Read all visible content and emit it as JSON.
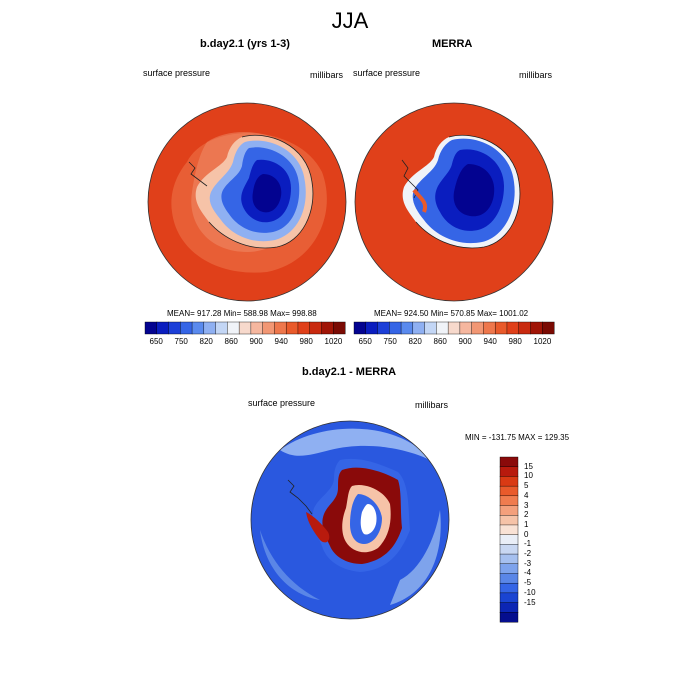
{
  "title": "JJA",
  "panels": [
    {
      "title": "b.day2.1 (yrs 1-3)",
      "left_label": "surface pressure",
      "right_label": "millibars",
      "stats": "MEAN= 917.28  Min= 588.98  Max= 998.88"
    },
    {
      "title": "MERRA",
      "left_label": "surface pressure",
      "right_label": "millibars",
      "stats": "MEAN= 924.50  Min= 570.85  Max= 1001.02"
    }
  ],
  "colorbar_pressure": {
    "tick_labels": [
      "650",
      "750",
      "820",
      "860",
      "900",
      "940",
      "980",
      "1020"
    ],
    "colors": [
      "#030390",
      "#0a1dbf",
      "#1c3fd8",
      "#3565e6",
      "#5a8aee",
      "#8fb0f2",
      "#c3d6f5",
      "#f0f3f8",
      "#f7d9cc",
      "#f6b79f",
      "#f29774",
      "#ee774c",
      "#e95a2b",
      "#e0401a",
      "#c92a0f",
      "#a01406",
      "#7a0a03"
    ]
  },
  "difference": {
    "title": "b.day2.1 - MERRA",
    "left_label": "surface pressure",
    "right_label": "millibars",
    "stats": "MIN = -131.75 MAX = 129.35",
    "tick_labels": [
      "15",
      "10",
      "5",
      "4",
      "3",
      "2",
      "1",
      "0",
      "-1",
      "-2",
      "-3",
      "-4",
      "-5",
      "-10",
      "-15"
    ],
    "colors": [
      "#8a0a0a",
      "#b81a0d",
      "#d93a14",
      "#e95a2b",
      "#f07c4f",
      "#f4a07c",
      "#f6c3a8",
      "#f9e2d5",
      "#e9eef7",
      "#c8d7f2",
      "#a6c0ef",
      "#7ea3ec",
      "#5a86e7",
      "#3565e6",
      "#1a44d2",
      "#0c26b4",
      "#050e8e"
    ]
  },
  "colors": {
    "ocean_red": "#e0401a",
    "ocean_diff_blue": "#2a58df"
  }
}
